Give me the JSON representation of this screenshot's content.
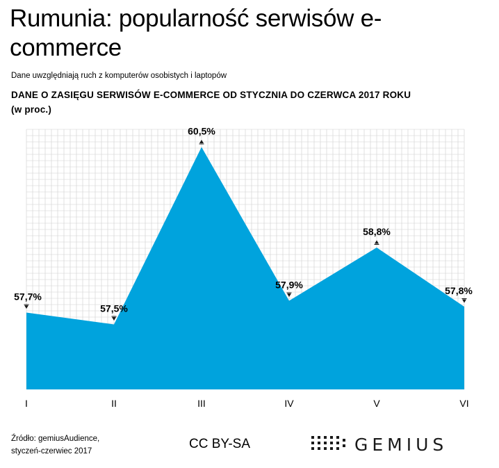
{
  "title": "Rumunia: popularność serwisów e-commerce",
  "note": "Dane uwzględniają ruch z komputerów  osobistych  i laptopów",
  "subtitle_line1": "DANE O ZASIĘGU SERWISÓW E-COMMERCE OD STYCZNIA DO CZERWCA 2017 ROKU",
  "subtitle_line2": "(w proc.)",
  "source_line1": "Źródło: gemiusAudience,",
  "source_line2": "styczeń-czerwiec  2017",
  "license": "CC BY-SA",
  "brand": "GEMIUS",
  "colors": {
    "area": "#00a3dd",
    "grid": "#cfcfcf",
    "text": "#000000"
  },
  "chart_data": {
    "type": "area",
    "categories": [
      "I",
      "II",
      "III",
      "IV",
      "V",
      "VI"
    ],
    "values": [
      57.7,
      57.5,
      60.5,
      57.9,
      58.8,
      57.8
    ],
    "data_labels": [
      "57,7%",
      "57,5%",
      "60,5%",
      "57,9%",
      "58,8%",
      "57,8%"
    ],
    "trend_icons": [
      "down",
      "down",
      "up",
      "down",
      "up",
      "down"
    ],
    "grid": true,
    "ylim": [
      56.4,
      60.8
    ]
  }
}
